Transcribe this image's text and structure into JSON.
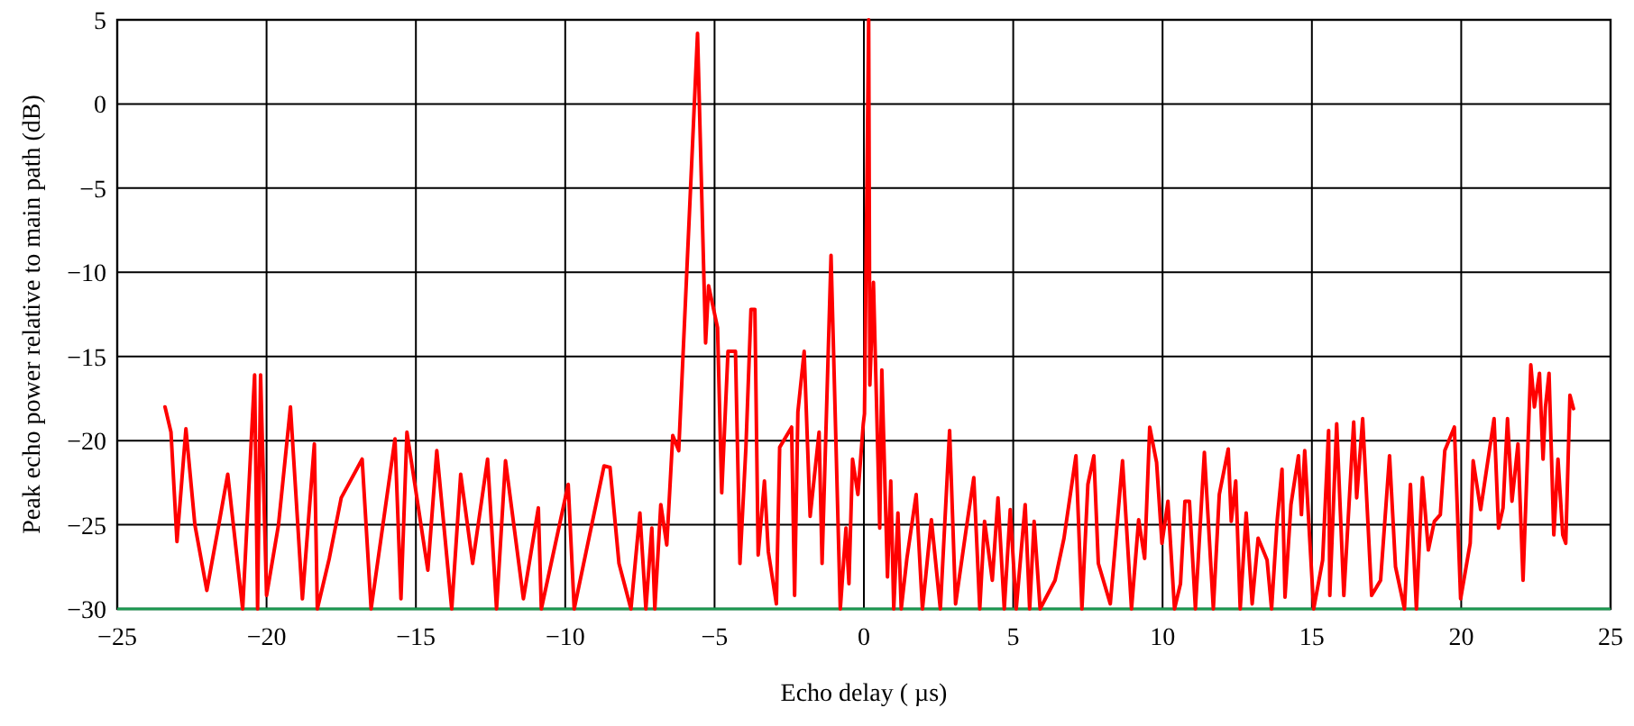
{
  "chart_data": {
    "type": "line",
    "xlabel": "Echo delay ( µs)",
    "ylabel": "Peak echo power relative to main path (dB)",
    "xlim": [
      -25,
      25
    ],
    "xticks": [
      -25,
      -20,
      -15,
      -10,
      -5,
      0,
      5,
      10,
      15,
      20,
      25
    ],
    "ylim": [
      -30,
      5
    ],
    "yticks": [
      -30,
      -25,
      -20,
      -15,
      -10,
      -5,
      0,
      5
    ],
    "grid": true,
    "marker": "none",
    "line_style": "solid",
    "series": [
      {
        "color": "#ff0000",
        "x": [
          -23.4,
          -23.2,
          -23.0,
          -22.7,
          -22.4,
          -22.0,
          -21.6,
          -21.3,
          -20.8,
          -20.4,
          -20.3,
          -20.2,
          -20.0,
          -19.6,
          -19.2,
          -18.8,
          -18.4,
          -18.3,
          -17.9,
          -17.5,
          -16.8,
          -16.5,
          -15.7,
          -15.5,
          -15.3,
          -14.6,
          -14.3,
          -13.8,
          -13.5,
          -13.1,
          -12.6,
          -12.3,
          -12.0,
          -11.4,
          -10.9,
          -10.8,
          -9.9,
          -9.7,
          -8.7,
          -8.5,
          -8.2,
          -7.8,
          -7.5,
          -7.3,
          -7.1,
          -7.0,
          -6.8,
          -6.6,
          -6.4,
          -6.2,
          -5.57,
          -5.3,
          -5.2,
          -4.9,
          -4.76,
          -4.55,
          -4.3,
          -4.15,
          -3.95,
          -3.78,
          -3.65,
          -3.54,
          -3.33,
          -3.2,
          -2.93,
          -2.82,
          -2.42,
          -2.32,
          -2.21,
          -2.0,
          -1.8,
          -1.5,
          -1.4,
          -1.1,
          -0.79,
          -0.6,
          -0.5,
          -0.38,
          -0.2,
          -0.02,
          0.02,
          0.16,
          0.2,
          0.32,
          0.53,
          0.6,
          0.79,
          0.9,
          1.0,
          1.14,
          1.25,
          1.44,
          1.75,
          1.96,
          2.26,
          2.56,
          2.87,
          3.07,
          3.43,
          3.68,
          3.88,
          4.04,
          4.3,
          4.49,
          4.7,
          4.9,
          5.1,
          5.4,
          5.55,
          5.7,
          5.9,
          6.4,
          6.7,
          7.1,
          7.3,
          7.5,
          7.7,
          7.85,
          8.25,
          8.66,
          8.96,
          9.2,
          9.4,
          9.57,
          9.8,
          9.98,
          10.18,
          10.4,
          10.6,
          10.75,
          10.9,
          11.1,
          11.4,
          11.7,
          11.9,
          12.2,
          12.3,
          12.45,
          12.6,
          12.8,
          13.0,
          13.2,
          13.5,
          13.65,
          13.84,
          14.0,
          14.1,
          14.3,
          14.55,
          14.65,
          14.76,
          15.06,
          15.36,
          15.56,
          15.6,
          15.83,
          16.07,
          16.4,
          16.5,
          16.7,
          17.0,
          17.3,
          17.6,
          17.8,
          18.1,
          18.3,
          18.5,
          18.7,
          18.9,
          19.1,
          19.3,
          19.45,
          19.77,
          19.98,
          20.3,
          20.4,
          20.65,
          21.1,
          21.25,
          21.4,
          21.55,
          21.7,
          21.9,
          22.07,
          22.33,
          22.45,
          22.62,
          22.74,
          22.82,
          22.94,
          23.1,
          23.24,
          23.4,
          23.5,
          23.64,
          23.76
        ],
        "values": [
          -18.0,
          -19.5,
          -26.0,
          -19.3,
          -25.0,
          -28.9,
          -25.0,
          -22.0,
          -30.0,
          -16.1,
          -30.0,
          -16.1,
          -29.2,
          -25.0,
          -18.0,
          -29.4,
          -20.2,
          -30.0,
          -27.0,
          -23.4,
          -21.1,
          -30.0,
          -19.9,
          -29.4,
          -19.5,
          -27.7,
          -20.6,
          -30.0,
          -22.0,
          -27.3,
          -21.1,
          -30.0,
          -21.2,
          -29.4,
          -24.0,
          -30.0,
          -22.6,
          -30.0,
          -21.5,
          -21.6,
          -27.3,
          -30.0,
          -24.3,
          -30.0,
          -25.2,
          -30.0,
          -23.8,
          -26.2,
          -19.7,
          -20.6,
          4.2,
          -14.2,
          -10.8,
          -13.3,
          -23.1,
          -14.7,
          -14.7,
          -27.3,
          -20.4,
          -12.2,
          -12.2,
          -26.8,
          -22.4,
          -26.6,
          -29.7,
          -20.4,
          -19.2,
          -29.2,
          -18.3,
          -14.7,
          -24.5,
          -19.5,
          -27.3,
          -9.0,
          -30.0,
          -25.2,
          -28.5,
          -21.1,
          -23.2,
          -19.0,
          -18.4,
          5.0,
          -16.7,
          -10.6,
          -25.2,
          -15.8,
          -28.1,
          -22.4,
          -30.0,
          -24.3,
          -30.0,
          -27.0,
          -23.2,
          -30.0,
          -24.7,
          -30.0,
          -19.4,
          -29.7,
          -25.2,
          -22.2,
          -30.0,
          -24.8,
          -28.3,
          -23.4,
          -30.0,
          -24.1,
          -30.0,
          -23.8,
          -30.0,
          -24.8,
          -30.0,
          -28.3,
          -25.8,
          -20.9,
          -30.0,
          -22.6,
          -20.9,
          -27.3,
          -29.7,
          -21.2,
          -30.0,
          -24.7,
          -27.0,
          -19.2,
          -21.3,
          -26.1,
          -23.6,
          -30.0,
          -28.5,
          -23.6,
          -23.6,
          -30.0,
          -20.7,
          -30.0,
          -23.2,
          -20.5,
          -24.8,
          -22.4,
          -30.0,
          -24.3,
          -29.7,
          -25.8,
          -27.1,
          -30.0,
          -24.7,
          -21.7,
          -29.3,
          -23.8,
          -20.9,
          -24.4,
          -20.6,
          -30.0,
          -27.1,
          -19.4,
          -29.2,
          -19.0,
          -29.2,
          -18.9,
          -23.4,
          -18.7,
          -29.2,
          -28.3,
          -20.9,
          -27.5,
          -30.0,
          -22.6,
          -30.0,
          -22.2,
          -26.5,
          -24.8,
          -24.4,
          -20.6,
          -19.2,
          -29.4,
          -26.1,
          -21.2,
          -24.1,
          -18.7,
          -25.2,
          -24.0,
          -18.7,
          -23.6,
          -20.2,
          -28.3,
          -15.5,
          -18.0,
          -16.0,
          -21.1,
          -18.0,
          -16.0,
          -25.6,
          -21.1,
          -25.6,
          -26.1,
          -17.3,
          -18.1
        ]
      }
    ]
  }
}
